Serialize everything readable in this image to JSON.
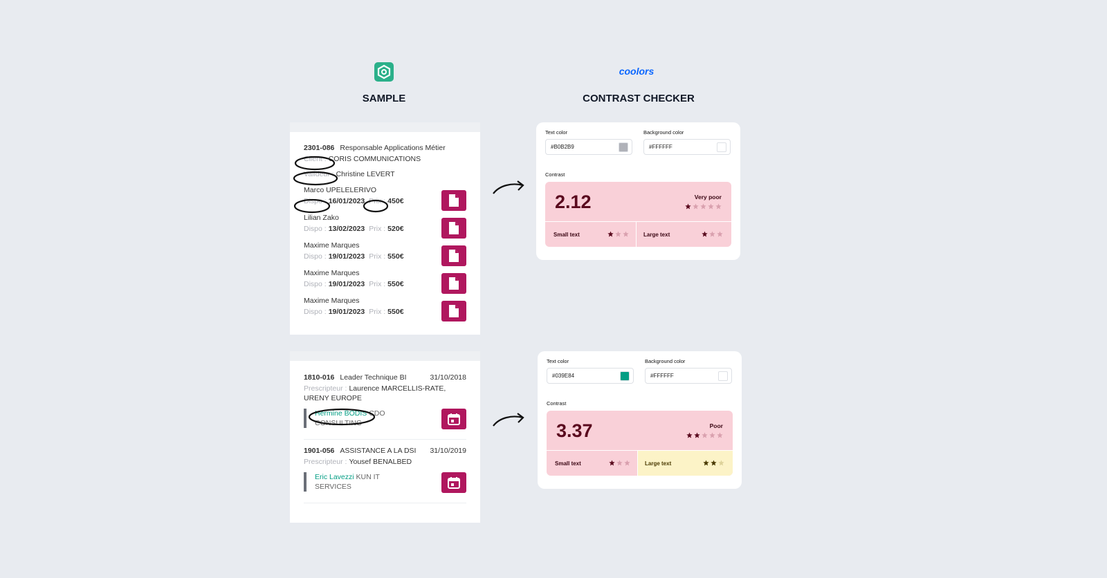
{
  "header": {
    "sample_title": "SAMPLE",
    "checker_title": "CONTRAST CHECKER",
    "brand": "coolors"
  },
  "sample_1": {
    "ref": "2301-086",
    "job": "Responsable Applications Métier",
    "client_label": "Client :",
    "client": "CORIS COMMUNICATIONS",
    "validator_label": "Valideur :",
    "validator": "Christine LEVERT",
    "dispo_label": "Dispo :",
    "price_label": "Prix :",
    "candidates": [
      {
        "name": "Marco UPELELERIVO",
        "date": "16/01/2023",
        "price": "450€"
      },
      {
        "name": "Lilian Zako",
        "date": "13/02/2023",
        "price": "520€"
      },
      {
        "name": "Maxime Marques",
        "date": "19/01/2023",
        "price": "550€"
      },
      {
        "name": "Maxime Marques",
        "date": "19/01/2023",
        "price": "550€"
      },
      {
        "name": "Maxime Marques",
        "date": "19/01/2023",
        "price": "550€"
      }
    ]
  },
  "sample_2": {
    "prescriber_label": "Prescripteur :",
    "missions": [
      {
        "ref": "1810-016",
        "job": "Leader Technique BI",
        "date": "31/10/2018",
        "prescriber": "Laurence MARCELLIS-RATE, URENY EUROPE",
        "contact": "Hermine BODIS",
        "company": "CDO CONSULTING"
      },
      {
        "ref": "1901-056",
        "job": "ASSISTANCE A LA DSI",
        "date": "31/10/2019",
        "prescriber": "Yousef BENALBED",
        "contact": "Eric Lavezzi",
        "company": "KUN IT SERVICES"
      }
    ]
  },
  "checkers": [
    {
      "text_color_label": "Text color",
      "bg_color_label": "Background color",
      "text_color": "#B0B2B9",
      "bg_color": "#FFFFFF",
      "contrast_label": "Contrast",
      "score": 2.12,
      "rating": "Very poor",
      "rating_stars": 1,
      "rating_max": 5,
      "small_label": "Small text",
      "small_stars": 1,
      "large_label": "Large text",
      "large_stars": 1,
      "level_max": 3
    },
    {
      "text_color_label": "Text color",
      "bg_color_label": "Background color",
      "text_color": "#039E84",
      "bg_color": "#FFFFFF",
      "contrast_label": "Contrast",
      "score": 3.37,
      "rating": "Poor",
      "rating_stars": 2,
      "rating_max": 5,
      "small_label": "Small text",
      "small_stars": 1,
      "large_label": "Large text",
      "large_stars": 2,
      "level_max": 3
    }
  ]
}
